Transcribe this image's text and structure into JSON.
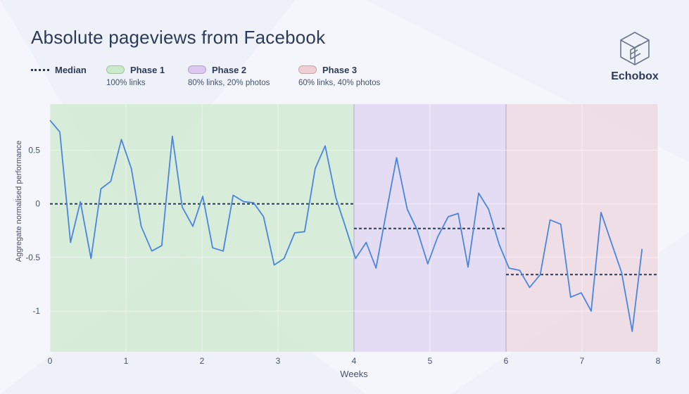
{
  "page": {
    "title": "Absolute pageviews from Facebook",
    "brand": "Echobox"
  },
  "legend": {
    "median": {
      "label": "Median",
      "color": "#2d3b58"
    },
    "phases": [
      {
        "label": "Phase 1",
        "sublabel": "100% links",
        "color": "#cfe8cf",
        "legend_color": "#c9ebc9"
      },
      {
        "label": "Phase 2",
        "sublabel": "80% links, 20% photos",
        "color": "#ddd3f0",
        "legend_color": "#dcc8f0"
      },
      {
        "label": "Phase 3",
        "sublabel": "60% links, 40% photos",
        "color": "#edd6dd",
        "legend_color": "#efcfd4"
      }
    ]
  },
  "chart_data": {
    "type": "line",
    "title": "Absolute pageviews from Facebook",
    "xlabel": "Weeks",
    "ylabel": "Aggregate normalised performance",
    "xlim": [
      0,
      8
    ],
    "ylim": [
      -1.38,
      0.93
    ],
    "x_ticks": [
      0,
      1,
      2,
      3,
      4,
      5,
      6,
      7,
      8
    ],
    "y_ticks": [
      -1,
      -0.5,
      0,
      0.5
    ],
    "y_tick_labels": [
      "-1",
      "-0.5",
      "0",
      "0.5"
    ],
    "grid": true,
    "line_color": "#4a86e0",
    "phase_regions": [
      {
        "name": "Phase 1",
        "x": [
          0,
          4
        ]
      },
      {
        "name": "Phase 2",
        "x": [
          4,
          6
        ]
      },
      {
        "name": "Phase 3",
        "x": [
          6,
          8
        ]
      }
    ],
    "medians": [
      {
        "x": [
          0,
          4
        ],
        "y": 0
      },
      {
        "x": [
          4,
          6
        ],
        "y": -0.23
      },
      {
        "x": [
          6,
          8
        ],
        "y": -0.66
      }
    ],
    "series": [
      {
        "values": [
          [
            0,
            0.78
          ],
          [
            0.13,
            0.67
          ],
          [
            0.27,
            -0.36
          ],
          [
            0.4,
            0.02
          ],
          [
            0.54,
            -0.51
          ],
          [
            0.67,
            0.14
          ],
          [
            0.8,
            0.21
          ],
          [
            0.94,
            0.6
          ],
          [
            1.07,
            0.33
          ],
          [
            1.2,
            -0.21
          ],
          [
            1.34,
            -0.44
          ],
          [
            1.47,
            -0.39
          ],
          [
            1.61,
            0.63
          ],
          [
            1.74,
            -0.03
          ],
          [
            1.88,
            -0.21
          ],
          [
            2.01,
            0.07
          ],
          [
            2.14,
            -0.41
          ],
          [
            2.28,
            -0.44
          ],
          [
            2.41,
            0.08
          ],
          [
            2.55,
            0.02
          ],
          [
            2.68,
            0.01
          ],
          [
            2.81,
            -0.12
          ],
          [
            2.95,
            -0.57
          ],
          [
            3.08,
            -0.51
          ],
          [
            3.22,
            -0.27
          ],
          [
            3.35,
            -0.26
          ],
          [
            3.49,
            0.33
          ],
          [
            3.62,
            0.54
          ],
          [
            3.76,
            0.06
          ],
          [
            3.89,
            -0.22
          ],
          [
            4.02,
            -0.51
          ],
          [
            4.16,
            -0.36
          ],
          [
            4.29,
            -0.6
          ],
          [
            4.43,
            -0.06
          ],
          [
            4.56,
            0.43
          ],
          [
            4.7,
            -0.05
          ],
          [
            4.83,
            -0.24
          ],
          [
            4.97,
            -0.56
          ],
          [
            5.1,
            -0.31
          ],
          [
            5.24,
            -0.12
          ],
          [
            5.37,
            -0.09
          ],
          [
            5.5,
            -0.59
          ],
          [
            5.64,
            0.1
          ],
          [
            5.77,
            -0.05
          ],
          [
            5.91,
            -0.38
          ],
          [
            6.04,
            -0.6
          ],
          [
            6.18,
            -0.62
          ],
          [
            6.31,
            -0.78
          ],
          [
            6.45,
            -0.66
          ],
          [
            6.58,
            -0.15
          ],
          [
            6.72,
            -0.19
          ],
          [
            6.85,
            -0.87
          ],
          [
            6.99,
            -0.83
          ],
          [
            7.12,
            -1.0
          ],
          [
            7.25,
            -0.08
          ],
          [
            7.39,
            -0.37
          ],
          [
            7.52,
            -0.64
          ],
          [
            7.66,
            -1.19
          ],
          [
            7.79,
            -0.42
          ]
        ]
      }
    ]
  }
}
